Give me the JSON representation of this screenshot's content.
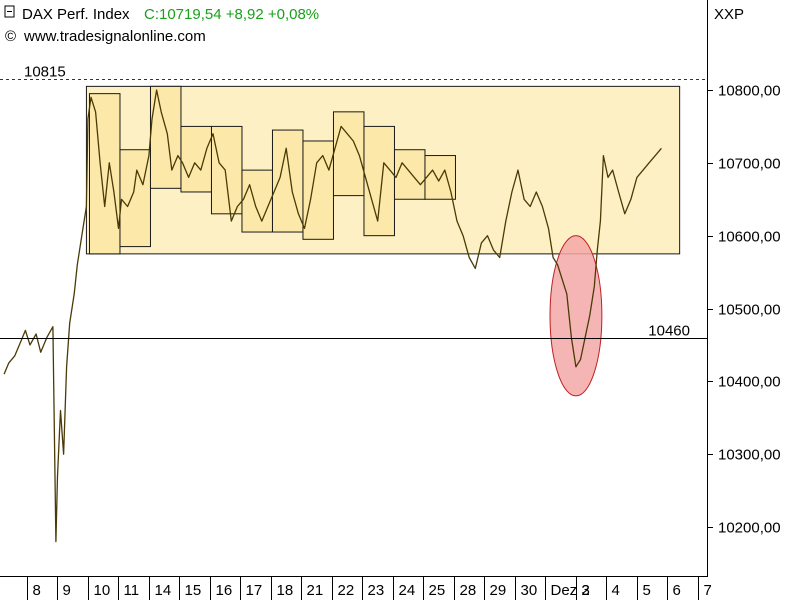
{
  "header": {
    "instrument": "DAX Perf. Index",
    "quote": "C:10719,54 +8,92 +0,08%",
    "copyright_symbol": "©",
    "source": "www.tradesignalonline.com",
    "exchange": "XXP"
  },
  "colors": {
    "quote": "#1aa01a",
    "price_line": "#4a3a06",
    "box_fill": "#fdf0c4",
    "box_stroke": "#1a1a1a",
    "ref_dashed": "#1f1fcf",
    "ref_solid": "#000000",
    "ellipse_fill": "#f4a8a8",
    "ellipse_stroke": "#c02020"
  },
  "chart_data": {
    "type": "line",
    "title": "DAX Perf. Index",
    "xlabel": "",
    "ylabel": "",
    "ylim": [
      10150,
      10890
    ],
    "grid": false,
    "y_ticks": [
      "10200,00",
      "10300,00",
      "10400,00",
      "10500,00",
      "10600,00",
      "10700,00",
      "10800,00"
    ],
    "x_ticks": [
      "8",
      "9",
      "10",
      "11",
      "14",
      "15",
      "16",
      "17",
      "18",
      "21",
      "22",
      "23",
      "24",
      "25",
      "28",
      "29",
      "30",
      "Dez 2",
      "3",
      "4",
      "5",
      "6",
      "7"
    ],
    "reference_lines": [
      {
        "label": "10815",
        "value": 10815,
        "style": "dashed"
      },
      {
        "label": "10460",
        "value": 10460,
        "style": "solid"
      }
    ],
    "consolidation_range": {
      "low": 10575,
      "high": 10805,
      "from_session": 1.85,
      "to_session": 21.3
    },
    "daily_ranges": [
      {
        "session": "10",
        "low": 10575,
        "high": 10795
      },
      {
        "session": "11",
        "low": 10585,
        "high": 10718
      },
      {
        "session": "14",
        "low": 10665,
        "high": 10805
      },
      {
        "session": "15",
        "low": 10660,
        "high": 10750
      },
      {
        "session": "16",
        "low": 10630,
        "high": 10750
      },
      {
        "session": "17",
        "low": 10605,
        "high": 10690
      },
      {
        "session": "18",
        "low": 10605,
        "high": 10745
      },
      {
        "session": "21",
        "low": 10595,
        "high": 10730
      },
      {
        "session": "22",
        "low": 10655,
        "high": 10770
      },
      {
        "session": "23",
        "low": 10600,
        "high": 10750
      },
      {
        "session": "24",
        "low": 10650,
        "high": 10718
      },
      {
        "session": "25",
        "low": 10650,
        "high": 10710
      }
    ],
    "highlight_ellipse": {
      "session_center": 17.9,
      "value_center": 10490,
      "session_half_width": 0.85,
      "value_half_span": 110
    },
    "series": [
      {
        "values": [
          [
            -0.85,
            10410
          ],
          [
            -0.7,
            10425
          ],
          [
            -0.5,
            10435
          ],
          [
            -0.3,
            10455
          ],
          [
            -0.15,
            10470
          ],
          [
            0.0,
            10450
          ],
          [
            0.2,
            10465
          ],
          [
            0.35,
            10440
          ],
          [
            0.55,
            10460
          ],
          [
            0.75,
            10475
          ],
          [
            0.85,
            10180
          ],
          [
            0.9,
            10270
          ],
          [
            1.0,
            10360
          ],
          [
            1.1,
            10300
          ],
          [
            1.2,
            10420
          ],
          [
            1.3,
            10480
          ],
          [
            1.45,
            10520
          ],
          [
            1.55,
            10560
          ],
          [
            1.7,
            10600
          ],
          [
            1.85,
            10640
          ],
          [
            1.9,
            10760
          ],
          [
            2.0,
            10790
          ],
          [
            2.15,
            10770
          ],
          [
            2.3,
            10700
          ],
          [
            2.45,
            10640
          ],
          [
            2.6,
            10700
          ],
          [
            2.75,
            10660
          ],
          [
            2.9,
            10610
          ],
          [
            3.0,
            10650
          ],
          [
            3.2,
            10640
          ],
          [
            3.4,
            10660
          ],
          [
            3.5,
            10690
          ],
          [
            3.7,
            10670
          ],
          [
            3.9,
            10710
          ],
          [
            4.0,
            10760
          ],
          [
            4.15,
            10800
          ],
          [
            4.3,
            10770
          ],
          [
            4.5,
            10740
          ],
          [
            4.65,
            10690
          ],
          [
            4.85,
            10710
          ],
          [
            5.0,
            10700
          ],
          [
            5.2,
            10680
          ],
          [
            5.4,
            10700
          ],
          [
            5.6,
            10690
          ],
          [
            5.8,
            10720
          ],
          [
            6.0,
            10740
          ],
          [
            6.2,
            10700
          ],
          [
            6.4,
            10690
          ],
          [
            6.6,
            10620
          ],
          [
            6.8,
            10640
          ],
          [
            7.0,
            10650
          ],
          [
            7.2,
            10670
          ],
          [
            7.4,
            10640
          ],
          [
            7.6,
            10620
          ],
          [
            7.8,
            10640
          ],
          [
            8.0,
            10660
          ],
          [
            8.2,
            10680
          ],
          [
            8.4,
            10720
          ],
          [
            8.6,
            10660
          ],
          [
            8.8,
            10630
          ],
          [
            9.0,
            10610
          ],
          [
            9.2,
            10650
          ],
          [
            9.4,
            10700
          ],
          [
            9.6,
            10710
          ],
          [
            9.8,
            10690
          ],
          [
            10.0,
            10720
          ],
          [
            10.2,
            10750
          ],
          [
            10.4,
            10740
          ],
          [
            10.6,
            10730
          ],
          [
            10.8,
            10710
          ],
          [
            11.0,
            10680
          ],
          [
            11.2,
            10650
          ],
          [
            11.4,
            10620
          ],
          [
            11.6,
            10700
          ],
          [
            11.8,
            10690
          ],
          [
            12.0,
            10680
          ],
          [
            12.2,
            10700
          ],
          [
            12.4,
            10690
          ],
          [
            12.6,
            10680
          ],
          [
            12.8,
            10670
          ],
          [
            13.0,
            10680
          ],
          [
            13.2,
            10690
          ],
          [
            13.4,
            10675
          ],
          [
            13.6,
            10690
          ],
          [
            13.8,
            10660
          ],
          [
            14.0,
            10620
          ],
          [
            14.2,
            10600
          ],
          [
            14.4,
            10570
          ],
          [
            14.6,
            10555
          ],
          [
            14.8,
            10590
          ],
          [
            15.0,
            10600
          ],
          [
            15.2,
            10580
          ],
          [
            15.4,
            10570
          ],
          [
            15.6,
            10620
          ],
          [
            15.8,
            10660
          ],
          [
            16.0,
            10690
          ],
          [
            16.2,
            10650
          ],
          [
            16.4,
            10640
          ],
          [
            16.6,
            10660
          ],
          [
            16.8,
            10640
          ],
          [
            17.0,
            10610
          ],
          [
            17.15,
            10570
          ],
          [
            17.3,
            10560
          ],
          [
            17.45,
            10540
          ],
          [
            17.6,
            10520
          ],
          [
            17.75,
            10460
          ],
          [
            17.9,
            10420
          ],
          [
            18.05,
            10430
          ],
          [
            18.2,
            10460
          ],
          [
            18.35,
            10490
          ],
          [
            18.5,
            10530
          ],
          [
            18.6,
            10580
          ],
          [
            18.7,
            10620
          ],
          [
            18.8,
            10710
          ],
          [
            18.95,
            10680
          ],
          [
            19.1,
            10690
          ],
          [
            19.3,
            10660
          ],
          [
            19.5,
            10630
          ],
          [
            19.7,
            10650
          ],
          [
            19.9,
            10680
          ],
          [
            20.1,
            10690
          ],
          [
            20.3,
            10700
          ],
          [
            20.5,
            10710
          ],
          [
            20.7,
            10720
          ]
        ]
      }
    ]
  }
}
